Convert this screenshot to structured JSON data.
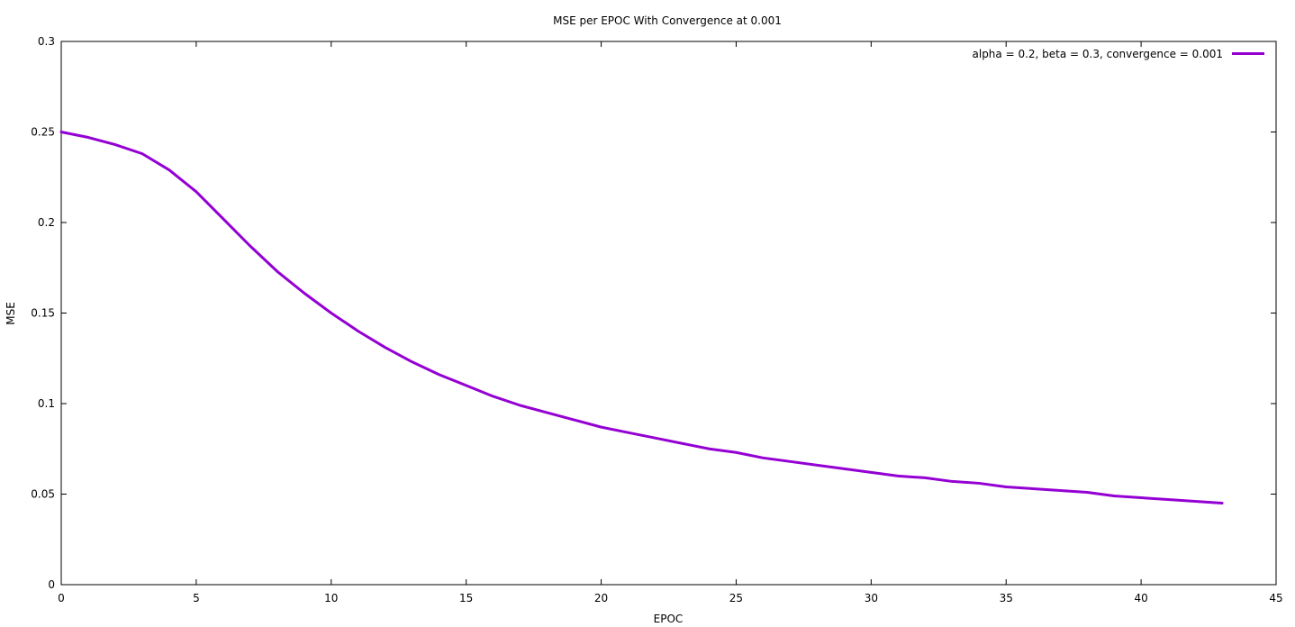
{
  "chart_data": {
    "type": "line",
    "title": "MSE per EPOC With Convergence at 0.001",
    "xlabel": "EPOC",
    "ylabel": "MSE",
    "xlim": [
      0,
      45
    ],
    "ylim": [
      0,
      0.3
    ],
    "x_ticks": [
      0,
      5,
      10,
      15,
      20,
      25,
      30,
      35,
      40,
      45
    ],
    "y_ticks": [
      0,
      0.05,
      0.1,
      0.15,
      0.2,
      0.25,
      0.3
    ],
    "x_tick_labels": [
      "0",
      "5",
      "10",
      "15",
      "20",
      "25",
      "30",
      "35",
      "40",
      "45"
    ],
    "y_tick_labels": [
      "0",
      "0.05",
      "0.1",
      "0.15",
      "0.2",
      "0.25",
      "0.3"
    ],
    "grid": false,
    "legend_position": "top-right",
    "series": [
      {
        "name": "alpha = 0.2, beta = 0.3, convergence = 0.001",
        "color": "#9400d3",
        "x": [
          0,
          1,
          2,
          3,
          4,
          5,
          6,
          7,
          8,
          9,
          10,
          11,
          12,
          13,
          14,
          15,
          16,
          17,
          18,
          19,
          20,
          21,
          22,
          23,
          24,
          25,
          26,
          27,
          28,
          29,
          30,
          31,
          32,
          33,
          34,
          35,
          36,
          37,
          38,
          39,
          40,
          41,
          42,
          43
        ],
        "values": [
          0.25,
          0.247,
          0.243,
          0.238,
          0.229,
          0.217,
          0.202,
          0.187,
          0.173,
          0.161,
          0.15,
          0.14,
          0.131,
          0.123,
          0.116,
          0.11,
          0.104,
          0.099,
          0.095,
          0.091,
          0.087,
          0.084,
          0.081,
          0.078,
          0.075,
          0.073,
          0.07,
          0.068,
          0.066,
          0.064,
          0.062,
          0.06,
          0.059,
          0.057,
          0.056,
          0.054,
          0.053,
          0.052,
          0.051,
          0.049,
          0.048,
          0.047,
          0.046,
          0.045
        ]
      }
    ]
  }
}
